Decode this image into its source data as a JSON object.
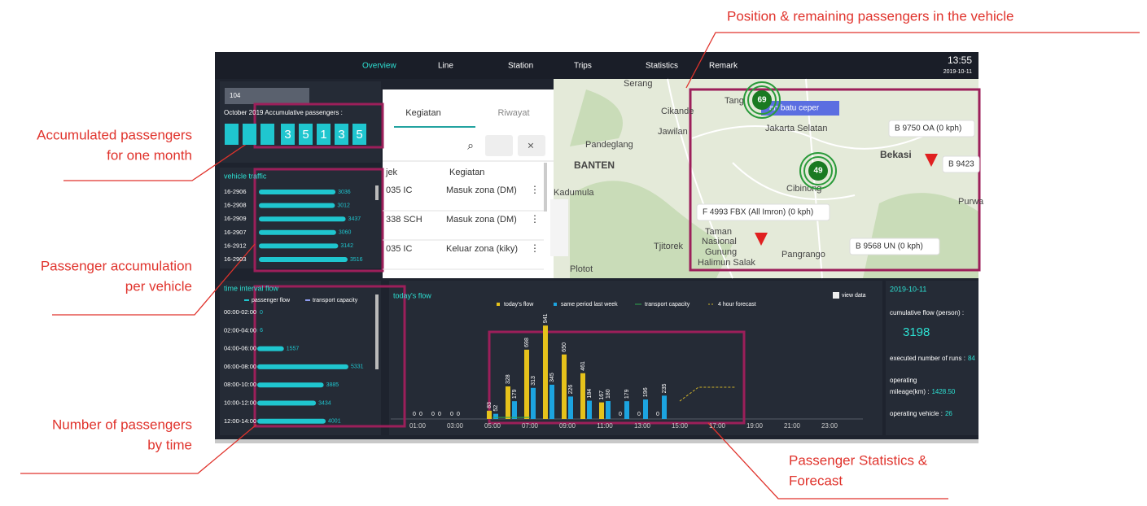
{
  "annotations": [
    {
      "lines": [
        "Position & remaining passengers in the vehicle"
      ]
    },
    {
      "lines": [
        "Accumulated passengers",
        "for one month"
      ]
    },
    {
      "lines": [
        "Passenger accumulation",
        "per vehicle"
      ]
    },
    {
      "lines": [
        "Number of passengers",
        "by time"
      ]
    },
    {
      "lines": [
        "Passenger Statistics &",
        "Forecast"
      ]
    }
  ],
  "nav": {
    "items": [
      "Overview",
      "Line",
      "Station",
      "Trips",
      "Statistics",
      "Remark"
    ],
    "time": "13:55",
    "date": "2019-10-11"
  },
  "accumulation": {
    "select": "104",
    "label": "October 2019 Accumulative passengers :",
    "digits": [
      "3",
      "5",
      "1",
      "3",
      "5"
    ]
  },
  "vehicle_traffic": {
    "title": "vehicle traffic",
    "rows": [
      {
        "id": "16-2906",
        "value": 3036
      },
      {
        "id": "16-2908",
        "value": 3012
      },
      {
        "id": "16-2909",
        "value": 3437
      },
      {
        "id": "16-2907",
        "value": 3060
      },
      {
        "id": "16-2912",
        "value": 3142
      },
      {
        "id": "16-2903",
        "value": 3516
      }
    ]
  },
  "time_interval_flow": {
    "title": "time interval flow",
    "legend": [
      "passenger flow",
      "transport capacity"
    ],
    "rows": [
      {
        "range": "00:00-02:00",
        "value": 0
      },
      {
        "range": "02:00-04:00",
        "value": 6
      },
      {
        "range": "04:00-06:00",
        "value": 1557
      },
      {
        "range": "06:00-08:00",
        "value": 5331
      },
      {
        "range": "08:00-10:00",
        "value": 3885
      },
      {
        "range": "10:00-12:00",
        "value": 3434
      },
      {
        "range": "12:00-14:00",
        "value": 4001
      }
    ]
  },
  "activity_panel": {
    "tabs": [
      "Kegiatan",
      "Riwayat"
    ],
    "columns": [
      "jek",
      "Kegiatan"
    ],
    "rows": [
      [
        "035 IC",
        "Masuk zona (DM)"
      ],
      [
        "338 SCH",
        "Masuk zona (DM)"
      ],
      [
        "035 IC",
        "Keluar zona (kiky)"
      ]
    ]
  },
  "map": {
    "places": [
      "Serang",
      "Cikande",
      "Jawilan",
      "Pandeglang",
      "BANTEN",
      "Kadumula",
      "Tjitorek",
      "Plotot",
      "Tang",
      "Jakarta Selatan",
      "Bekasi",
      "Cibinong",
      "Purwa",
      "Taman",
      "Nasional",
      "Gunung",
      "Halimun Salak",
      "Pangrango"
    ],
    "clusters": [
      69,
      49
    ],
    "tag": "an batu ceper",
    "vehicles": [
      "B 9750 OA (0 kph)",
      "B 9423",
      "F 4993 FBX (All Imron) (0 kph)",
      "B 9568 UN (0 kph)"
    ]
  },
  "chart_data": {
    "type": "bar",
    "title": "today's flow",
    "view_data": "view data",
    "categories": [
      null,
      "01:00",
      null,
      "03:00",
      null,
      "05:00",
      null,
      "07:00",
      null,
      "09:00",
      null,
      "11:00",
      null,
      "13:00",
      null,
      "15:00",
      null,
      "17:00",
      null,
      "19:00",
      null,
      "21:00",
      null,
      "23:00"
    ],
    "ylim": [
      0,
      1000
    ],
    "series": [
      {
        "name": "today's flow",
        "color": "#e6c21b",
        "values": [
          null,
          0,
          0,
          0,
          null,
          83,
          328,
          698,
          941,
          650,
          461,
          167,
          0,
          0,
          0,
          null,
          null,
          null,
          null,
          null,
          null,
          null,
          null,
          null
        ]
      },
      {
        "name": "same period last week",
        "color": "#1ca4e0",
        "values": [
          null,
          0,
          0,
          0,
          null,
          52,
          179,
          313,
          345,
          226,
          184,
          180,
          179,
          196,
          235,
          null,
          null,
          null,
          null,
          null,
          null,
          null,
          null,
          null
        ]
      },
      {
        "name": "transport capacity",
        "color": "#2fa84f",
        "type": "line",
        "values": [
          null,
          null,
          null,
          null,
          null,
          15,
          15,
          15,
          null,
          null,
          null,
          null,
          null,
          null,
          null,
          null,
          null,
          null,
          null,
          null,
          null,
          null,
          null,
          null
        ]
      },
      {
        "name": "4 hour forecast",
        "color": "#cdb02a",
        "type": "line",
        "dashed": true,
        "values": [
          null,
          null,
          null,
          null,
          null,
          null,
          null,
          null,
          null,
          null,
          null,
          null,
          null,
          null,
          null,
          180,
          320,
          320,
          320,
          null,
          null,
          null,
          null,
          null
        ]
      }
    ]
  },
  "summary": {
    "date": "2019-10-11",
    "cumulative_label": "cumulative flow (person) :",
    "cumulative": 3198,
    "runs_label": "executed number of runs :",
    "runs": 84,
    "mileage_label": [
      "operating",
      "mileage(km) :"
    ],
    "mileage": "1428.50",
    "vehicle_label": "operating vehicle :",
    "vehicles": 26
  }
}
